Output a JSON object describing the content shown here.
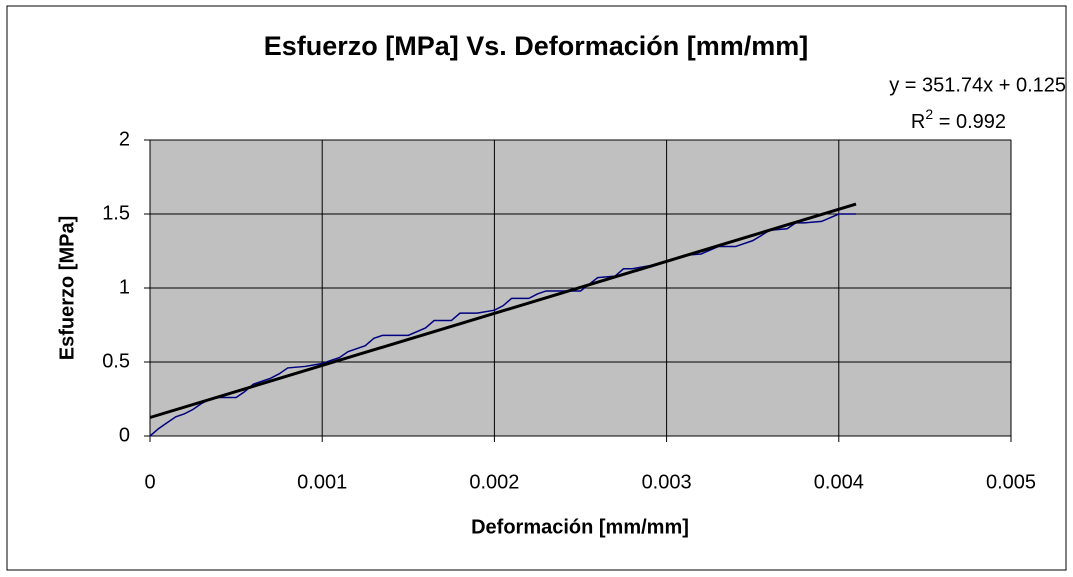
{
  "chart_data": {
    "type": "line",
    "title": "Esfuerzo  [MPa] Vs. Deformación [mm/mm]",
    "x_label": "Deformación [mm/mm]",
    "y_label": "Esfuerzo  [MPa]",
    "x": [
      0,
      5e-05,
      0.0001,
      0.00015,
      0.0002,
      0.00025,
      0.0003,
      0.00035,
      0.0004,
      0.0005,
      0.00055,
      0.0006,
      0.00065,
      0.0007,
      0.00075,
      0.0008,
      0.0009,
      0.001,
      0.00105,
      0.0011,
      0.00115,
      0.0012,
      0.00125,
      0.0013,
      0.00135,
      0.0014,
      0.0015,
      0.0016,
      0.00165,
      0.0017,
      0.00175,
      0.0018,
      0.0019,
      0.002,
      0.00205,
      0.0021,
      0.0022,
      0.00225,
      0.0023,
      0.0024,
      0.0025,
      0.0026,
      0.0027,
      0.00275,
      0.0028,
      0.0029,
      0.003,
      0.0031,
      0.0032,
      0.0033,
      0.0034,
      0.0035,
      0.0036,
      0.0037,
      0.00375,
      0.0038,
      0.0039,
      0.004,
      0.0041
    ],
    "series": [
      {
        "color": "#000080",
        "values": [
          0,
          0.05,
          0.09,
          0.13,
          0.15,
          0.18,
          0.22,
          0.25,
          0.26,
          0.26,
          0.3,
          0.35,
          0.37,
          0.39,
          0.42,
          0.46,
          0.47,
          0.49,
          0.51,
          0.53,
          0.57,
          0.59,
          0.61,
          0.66,
          0.68,
          0.68,
          0.68,
          0.73,
          0.78,
          0.78,
          0.78,
          0.83,
          0.83,
          0.85,
          0.88,
          0.93,
          0.93,
          0.96,
          0.98,
          0.98,
          0.98,
          1.07,
          1.08,
          1.13,
          1.13,
          1.15,
          1.18,
          1.22,
          1.23,
          1.28,
          1.28,
          1.32,
          1.39,
          1.4,
          1.44,
          1.44,
          1.45,
          1.5,
          1.5
        ]
      }
    ],
    "trendline": {
      "slope": 351.74,
      "intercept": 0.125,
      "r2": 0.992,
      "color": "#000000",
      "label": "y = 351.74x + 0.125",
      "r2_label": {
        "base": "R",
        "sup": "2",
        "rest": " = 0.992"
      }
    },
    "xlim": [
      0,
      0.005
    ],
    "xticks": [
      0,
      0.001,
      0.002,
      0.003,
      0.004,
      0.005
    ],
    "ylim": [
      0,
      2
    ],
    "yticks": [
      0,
      0.5,
      1,
      1.5,
      2
    ],
    "grid": true,
    "plot_background": "#c0c0c0"
  }
}
